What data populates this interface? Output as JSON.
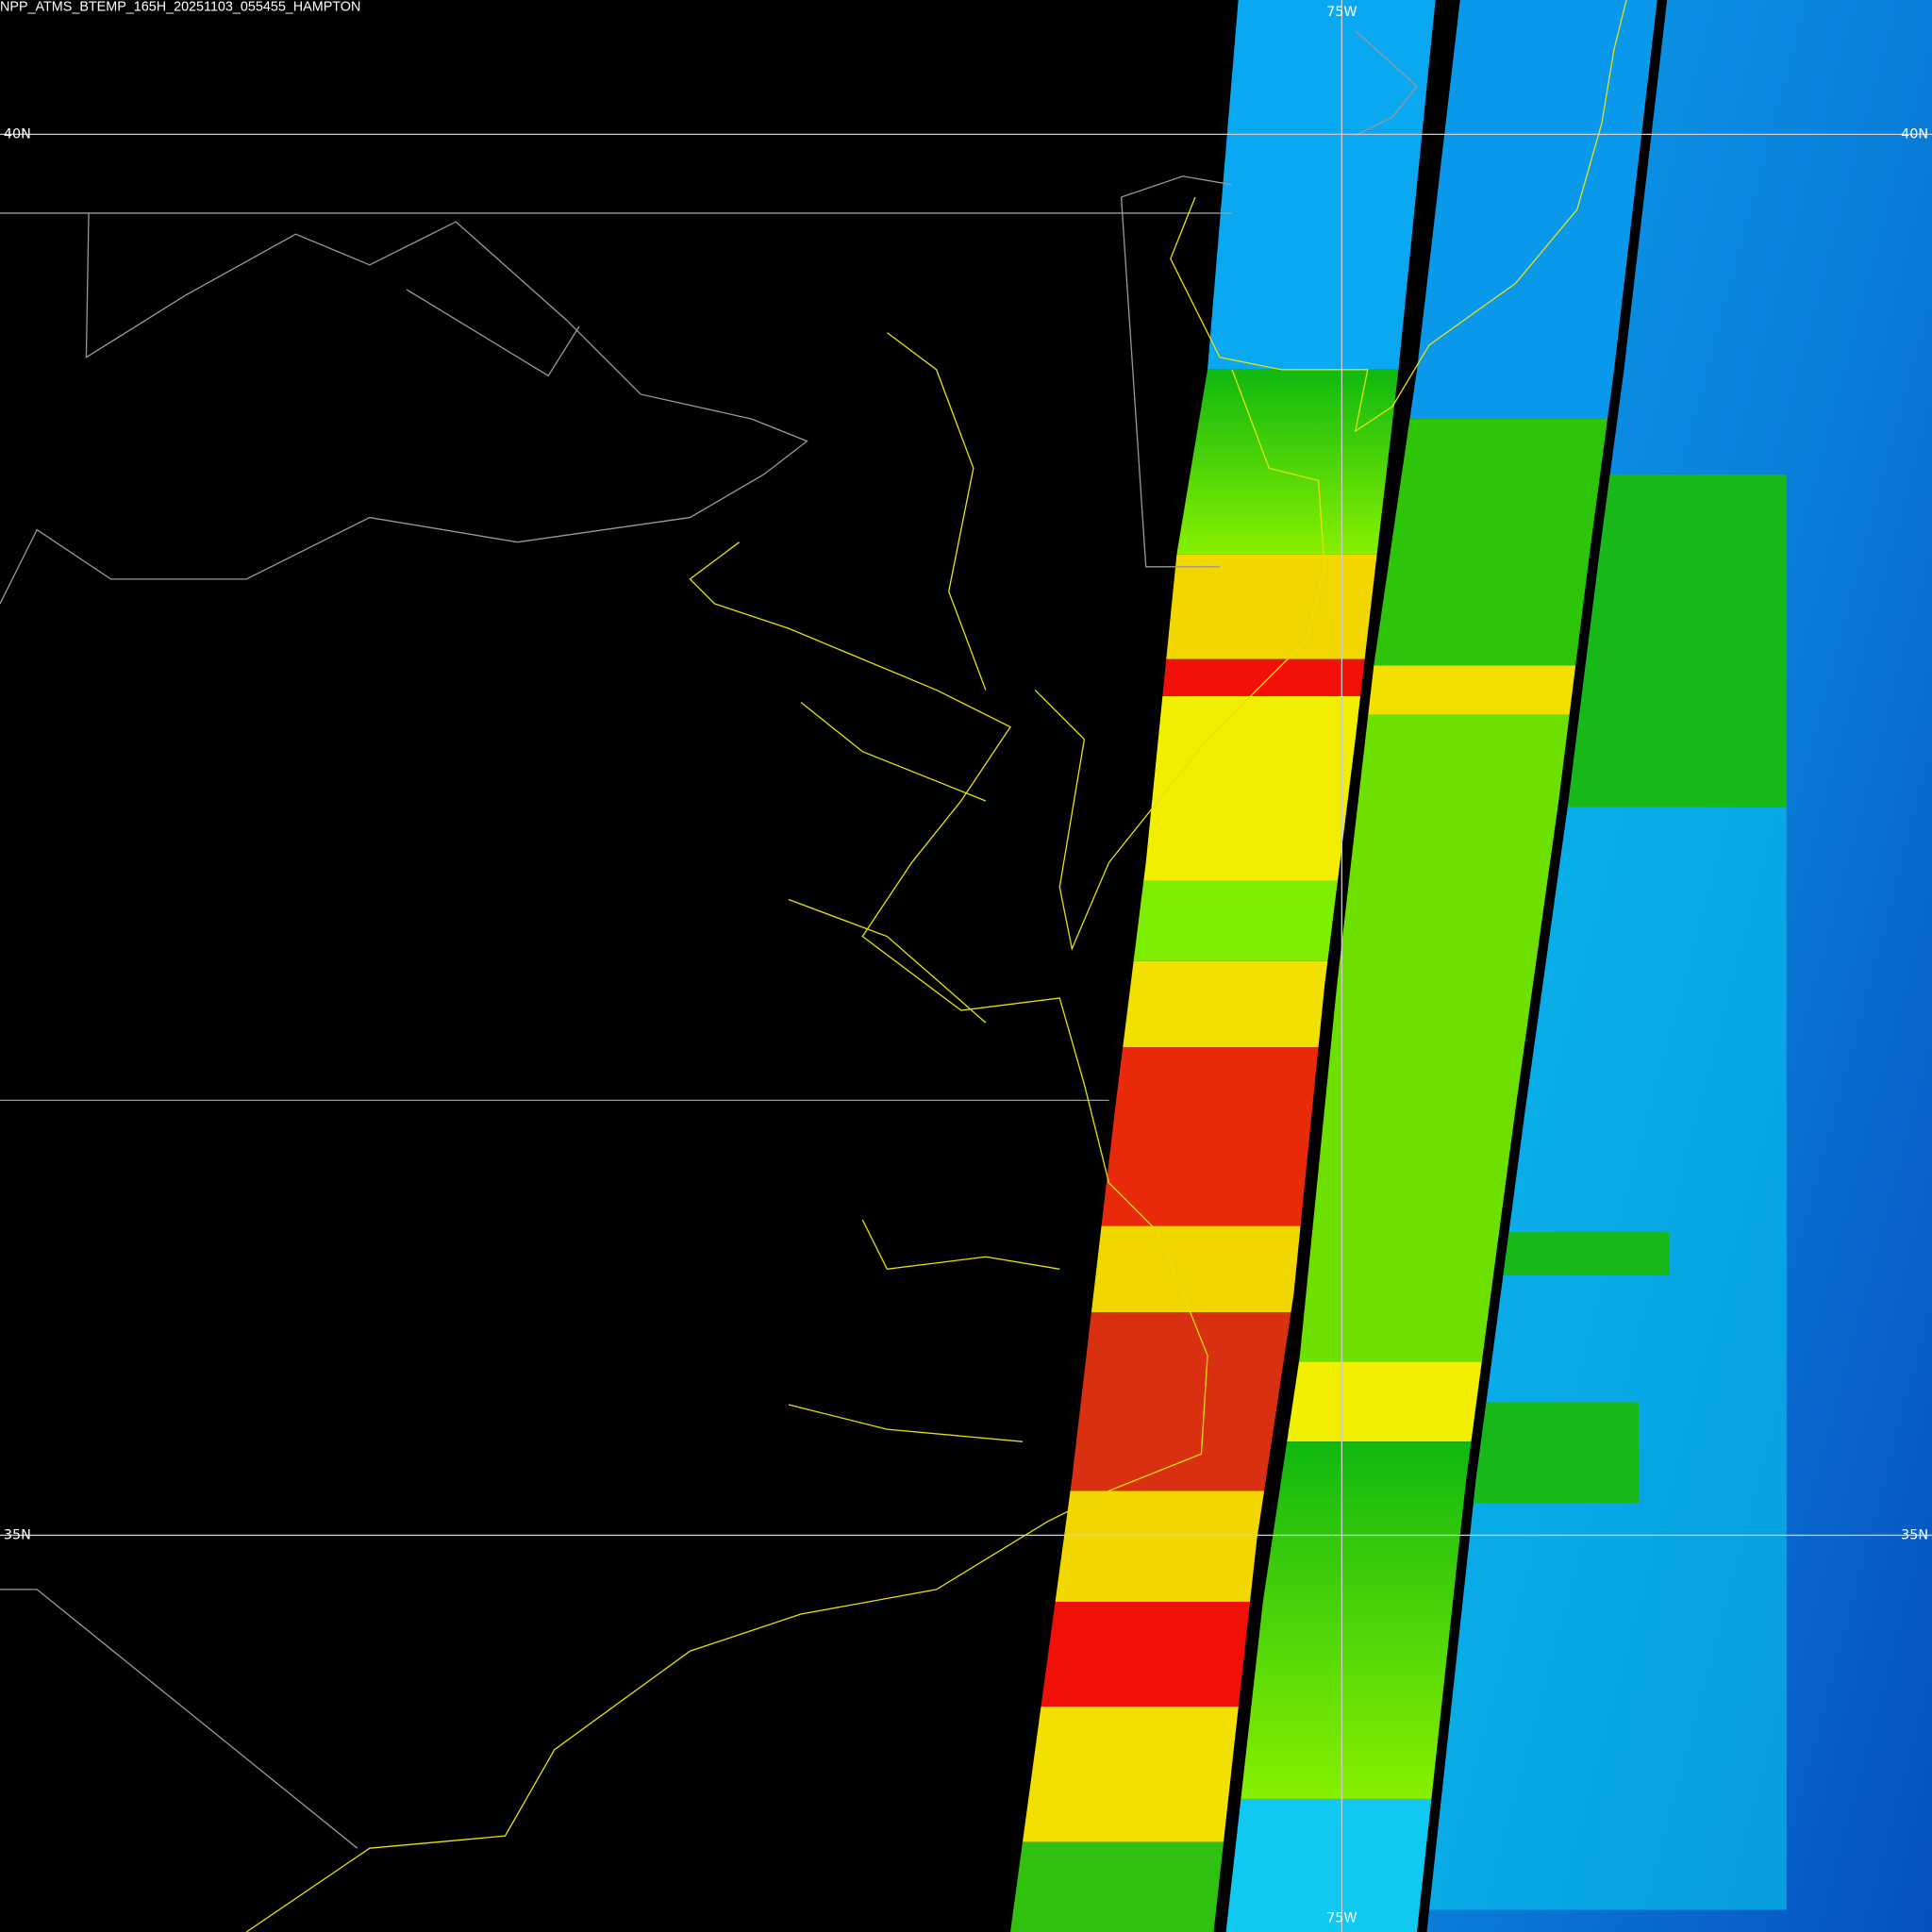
{
  "title": "NPP_ATMS_BTEMP_165H_20251103_055455_HAMPTON",
  "parallels": [
    {
      "label": "40N"
    },
    {
      "label": "35N"
    }
  ],
  "meridians": [
    {
      "label": "75W"
    }
  ]
}
